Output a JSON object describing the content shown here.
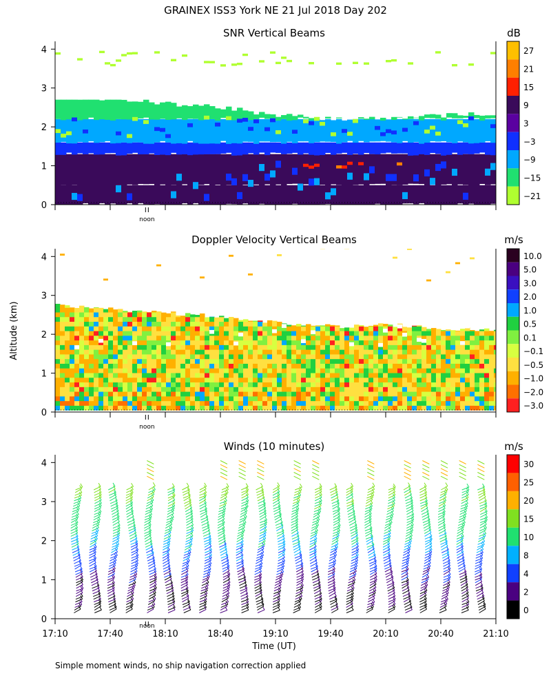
{
  "header": {
    "title": "GRAINEX ISS3 York NE  21 Jul 2018 Day 202",
    "footnote": "Simple moment winds, no ship navigation correction applied"
  },
  "common": {
    "y_label": "Altitude (km)",
    "x_label": "Time (UT)",
    "y_ticks": [
      "0",
      "1",
      "2",
      "3",
      "4"
    ],
    "x_ticks": [
      "17:10",
      "17:40",
      "18:10",
      "18:40",
      "19:10",
      "19:40",
      "20:10",
      "20:40",
      "21:10"
    ],
    "noon_label": "noon"
  },
  "chart_data": [
    {
      "type": "heatmap",
      "title": "SNR Vertical Beams",
      "xlabel": "",
      "ylabel": "Altitude (km)",
      "xlim": [
        "17:10",
        "21:10"
      ],
      "ylim": [
        0,
        4
      ],
      "units": "dB",
      "legend_position": "right",
      "colorbar": {
        "labels": [
          "27",
          "21",
          "15",
          "9",
          "3",
          "−3",
          "−9",
          "−15",
          "−21"
        ],
        "colors": [
          "#ffbf00",
          "#ff7f00",
          "#ff2000",
          "#3a0a5a",
          "#5a00a0",
          "#1030ff",
          "#00a8ff",
          "#20e070",
          "#b0ff30"
        ]
      },
      "layers": [
        {
          "from_km": 0.0,
          "to_km": 0.5,
          "value_db": 6,
          "color": "#3a0a5a"
        },
        {
          "from_km": 0.5,
          "to_km": 1.3,
          "value_db": 9,
          "color": "#3a0a5a"
        },
        {
          "from_km": 1.3,
          "to_km": 1.6,
          "value_db": -3,
          "color": "#1030ff"
        },
        {
          "from_km": 1.6,
          "to_km": 2.2,
          "value_db": -12,
          "color": "#00a8ff"
        },
        {
          "from_km": 2.2,
          "to_km": 2.7,
          "value_db": -18,
          "color": "#20e070"
        },
        {
          "from_km": 3.5,
          "to_km": 4.0,
          "value_db": -21,
          "color": "#b0ff30"
        }
      ],
      "top_km": [
        2.75,
        2.7,
        2.6,
        2.5,
        2.3,
        2.2,
        2.25,
        2.3,
        2.35
      ]
    },
    {
      "type": "heatmap",
      "title": "Doppler Velocity Vertical Beams",
      "xlabel": "",
      "ylabel": "Altitude (km)",
      "xlim": [
        "17:10",
        "21:10"
      ],
      "ylim": [
        0,
        4
      ],
      "units": "m/s",
      "legend_position": "right",
      "colorbar": {
        "labels": [
          "10.0",
          "5.0",
          "3.0",
          "2.0",
          "1.0",
          "0.5",
          "0.1",
          "−0.1",
          "−0.5",
          "−1.0",
          "−2.0",
          "−3.0"
        ],
        "colors": [
          "#2a0020",
          "#4a0080",
          "#3a10c0",
          "#1040ff",
          "#00a8ff",
          "#20d040",
          "#80f040",
          "#d8ff40",
          "#ffe040",
          "#ffb000",
          "#ff7000",
          "#ff2020"
        ]
      },
      "top_km": [
        2.75,
        2.65,
        2.55,
        2.45,
        2.3,
        2.2,
        2.25,
        2.15,
        2.1
      ]
    },
    {
      "type": "scatter",
      "title": "Winds (10 minutes)",
      "xlabel": "Time (UT)",
      "ylabel": "Altitude (km)",
      "xlim": [
        "17:10",
        "21:10"
      ],
      "ylim": [
        0,
        4
      ],
      "units": "m/s",
      "legend_position": "right",
      "colorbar": {
        "labels": [
          "30",
          "25",
          "20",
          "15",
          "10",
          "8",
          "4",
          "2",
          "0"
        ],
        "colors": [
          "#ff0000",
          "#ff6000",
          "#ffb000",
          "#80e020",
          "#20e070",
          "#00b0ff",
          "#1040ff",
          "#4a0080",
          "#000000"
        ]
      },
      "profiles_utc": [
        "17:20",
        "17:30",
        "17:40",
        "17:50",
        "18:00",
        "18:10",
        "18:20",
        "18:30",
        "18:40",
        "18:50",
        "19:00",
        "19:10",
        "19:20",
        "19:30",
        "19:40",
        "19:50",
        "20:00",
        "20:10",
        "20:20",
        "20:30",
        "20:40",
        "20:50",
        "21:00"
      ],
      "speed_profile": [
        {
          "alt_km": 0.2,
          "speed_ms": 1
        },
        {
          "alt_km": 0.6,
          "speed_ms": 2
        },
        {
          "alt_km": 1.0,
          "speed_ms": 3
        },
        {
          "alt_km": 1.4,
          "speed_ms": 6
        },
        {
          "alt_km": 1.8,
          "speed_ms": 9
        },
        {
          "alt_km": 2.2,
          "speed_ms": 11
        },
        {
          "alt_km": 2.6,
          "speed_ms": 13
        },
        {
          "alt_km": 3.0,
          "speed_ms": 15
        },
        {
          "alt_km": 3.3,
          "speed_ms": 16
        }
      ]
    }
  ]
}
